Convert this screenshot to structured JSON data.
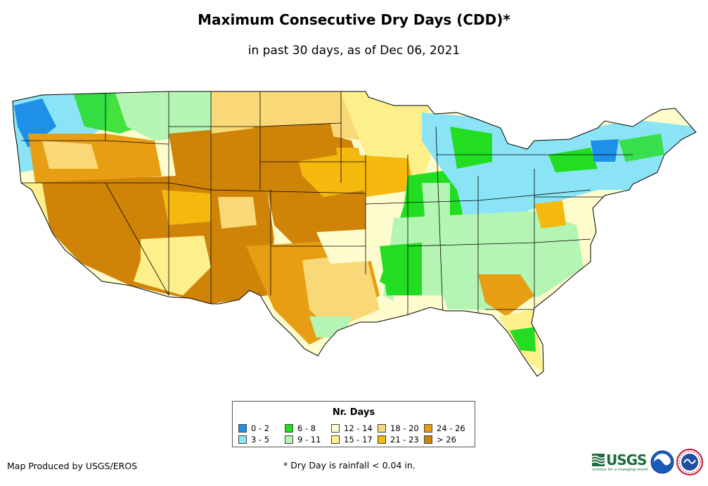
{
  "title": "Maximum Consecutive Dry Days (CDD)*",
  "subtitle": "in past 30 days, as of Dec 06, 2021",
  "legend": {
    "title": "Nr. Days",
    "items": [
      {
        "label": "0 - 2",
        "color": "#1e90e8"
      },
      {
        "label": "3 - 5",
        "color": "#8ae4f5"
      },
      {
        "label": "6 - 8",
        "color": "#22dd22"
      },
      {
        "label": "9 - 11",
        "color": "#b4f5b4"
      },
      {
        "label": "12 - 14",
        "color": "#fefccc"
      },
      {
        "label": "15 - 17",
        "color": "#fdf08a"
      },
      {
        "label": "18 - 20",
        "color": "#f9d878"
      },
      {
        "label": "21 - 23",
        "color": "#f5b80c"
      },
      {
        "label": "24 - 26",
        "color": "#e89e12"
      },
      {
        "label": "> 26",
        "color": "#cf8408"
      }
    ]
  },
  "credit": "Map Produced by USGS/EROS",
  "footnote": "* Dry Day is rainfall < 0.04 in.",
  "logos": {
    "usgs_text": "USGS",
    "usgs_tagline": "science for a changing world"
  }
}
